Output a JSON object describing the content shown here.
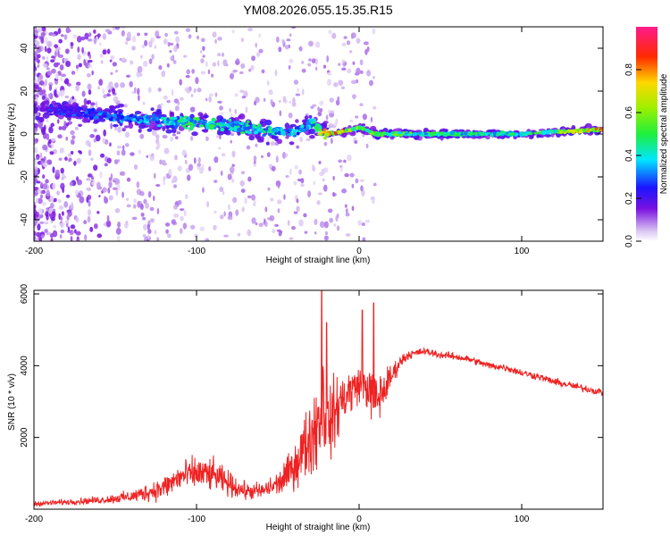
{
  "title": "YM08.2026.055.15.35.R15",
  "chart_data": [
    {
      "type": "heatmap",
      "xlabel": "Height of straight line (km)",
      "ylabel": "Frequency (Hz)",
      "xlim": [
        -200,
        150
      ],
      "ylim": [
        -50,
        50
      ],
      "x_ticks": [
        -200,
        -100,
        0,
        100
      ],
      "x_tick_labels": [
        "-200",
        "-100",
        "0",
        "100"
      ],
      "y_ticks": [
        -40,
        -20,
        0,
        20,
        40
      ],
      "y_tick_labels": [
        "-40",
        "-20",
        "0",
        "20",
        "40"
      ],
      "ridge": {
        "x": [
          -200,
          -180,
          -160,
          -140,
          -120,
          -100,
          -80,
          -60,
          -40,
          -30,
          -20,
          -10,
          0,
          10,
          20,
          40,
          60,
          80,
          100,
          120,
          150
        ],
        "frequency": [
          12,
          11,
          9,
          7,
          6,
          5,
          4,
          2,
          1,
          5,
          0,
          1,
          3,
          0,
          0,
          0,
          0,
          0,
          0,
          1,
          2
        ],
        "amplitude": [
          0.3,
          0.3,
          0.35,
          0.4,
          0.45,
          0.55,
          0.5,
          0.5,
          0.45,
          0.4,
          0.95,
          0.85,
          0.6,
          0.7,
          0.6,
          0.55,
          0.55,
          0.5,
          0.5,
          0.6,
          0.9
        ]
      },
      "colorbar": {
        "label": "Normalized spectral amplitude",
        "range": [
          0,
          1
        ],
        "ticks": [
          0.0,
          0.2,
          0.4,
          0.6,
          0.8
        ],
        "tick_labels": [
          "0.0",
          "0.2",
          "0.4",
          "0.6",
          "0.8"
        ]
      }
    },
    {
      "type": "line",
      "xlabel": "Height of straight line (km)",
      "ylabel": "SNR (10 * v/v)",
      "xlim": [
        -200,
        150
      ],
      "ylim": [
        0,
        6100
      ],
      "x_ticks": [
        -200,
        -100,
        0,
        100
      ],
      "x_tick_labels": [
        "-200",
        "-100",
        "0",
        "100"
      ],
      "y_ticks": [
        2000,
        4000,
        6000
      ],
      "y_tick_labels": [
        "2000",
        "4000",
        "6000"
      ],
      "color": "#ee2222",
      "series": [
        {
          "name": "SNR",
          "x": [
            -200,
            -180,
            -160,
            -140,
            -120,
            -110,
            -100,
            -90,
            -80,
            -70,
            -60,
            -50,
            -45,
            -40,
            -35,
            -30,
            -25,
            -22,
            -20,
            -15,
            -10,
            -5,
            0,
            5,
            10,
            15,
            20,
            25,
            30,
            35,
            40,
            50,
            60,
            70,
            80,
            90,
            100,
            110,
            120,
            130,
            140,
            150
          ],
          "y": [
            150,
            200,
            250,
            350,
            600,
            900,
            1000,
            950,
            700,
            500,
            500,
            700,
            900,
            1200,
            1600,
            2000,
            2500,
            3000,
            2200,
            2700,
            3100,
            3300,
            3500,
            3400,
            3000,
            3300,
            3700,
            4100,
            4300,
            4350,
            4400,
            4300,
            4250,
            4150,
            4000,
            3950,
            3800,
            3700,
            3550,
            3450,
            3350,
            3250
          ],
          "spread": [
            100,
            120,
            150,
            250,
            500,
            600,
            700,
            650,
            500,
            350,
            350,
            500,
            700,
            900,
            1200,
            1600,
            1900,
            2500,
            1500,
            1400,
            1200,
            1000,
            700,
            900,
            1100,
            900,
            500,
            250,
            200,
            150,
            150,
            150,
            150,
            150,
            150,
            150,
            150,
            150,
            150,
            150,
            150,
            150
          ],
          "peaks": [
            {
              "x": -23,
              "y": 6100
            },
            {
              "x": -20,
              "y": 5200
            },
            {
              "x": 2,
              "y": 5550
            },
            {
              "x": 9,
              "y": 5750
            }
          ]
        }
      ]
    }
  ]
}
